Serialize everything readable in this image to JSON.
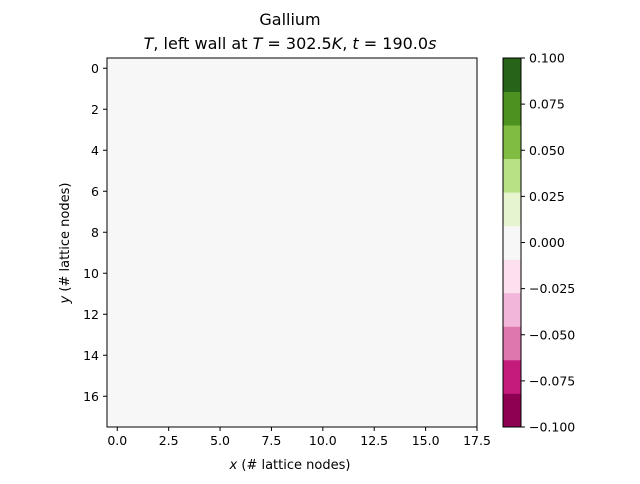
{
  "chart_data": {
    "type": "heatmap",
    "title": "Gallium",
    "subtitle_parts": [
      {
        "text": "T",
        "italic": true
      },
      {
        "text": ", left wall at ",
        "italic": false
      },
      {
        "text": "T",
        "italic": true
      },
      {
        "text": " = 302.5",
        "italic": false
      },
      {
        "text": "K",
        "italic": true
      },
      {
        "text": ", ",
        "italic": false
      },
      {
        "text": "t",
        "italic": true
      },
      {
        "text": " = 190.0",
        "italic": false
      },
      {
        "text": "s",
        "italic": true
      }
    ],
    "xlabel_parts": [
      {
        "text": "x",
        "italic": true
      },
      {
        "text": " (# lattice nodes)",
        "italic": false
      }
    ],
    "ylabel_parts": [
      {
        "text": "y",
        "italic": true
      },
      {
        "text": " (# lattice nodes)",
        "italic": false
      }
    ],
    "xlim": [
      -0.5,
      17.5
    ],
    "ylim": [
      17.5,
      -0.5
    ],
    "x_ticks": [
      0.0,
      2.5,
      5.0,
      7.5,
      10.0,
      12.5,
      15.0,
      17.5
    ],
    "x_tick_labels": [
      "0.0",
      "2.5",
      "5.0",
      "7.5",
      "10.0",
      "12.5",
      "15.0",
      "17.5"
    ],
    "y_ticks": [
      0,
      2,
      4,
      6,
      8,
      10,
      12,
      14,
      16
    ],
    "y_tick_labels": [
      "0",
      "2",
      "4",
      "6",
      "8",
      "10",
      "12",
      "14",
      "16"
    ],
    "field_value": 0.0,
    "field_color": "#f7f7f7",
    "colorbar": {
      "ticks": [
        -0.1,
        -0.075,
        -0.05,
        -0.025,
        0.0,
        0.025,
        0.05,
        0.075,
        0.1
      ],
      "tick_labels": [
        "−0.100",
        "−0.075",
        "−0.050",
        "−0.025",
        "0.000",
        "0.025",
        "0.050",
        "0.075",
        "0.100"
      ],
      "range": [
        -0.1,
        0.1
      ],
      "bands_bottom_to_top": [
        "#8e0152",
        "#c51b7d",
        "#de77ae",
        "#f1b6da",
        "#fde0ef",
        "#f7f7f7",
        "#e6f5d0",
        "#b8e186",
        "#7fbc41",
        "#4d9221",
        "#276419"
      ]
    }
  }
}
